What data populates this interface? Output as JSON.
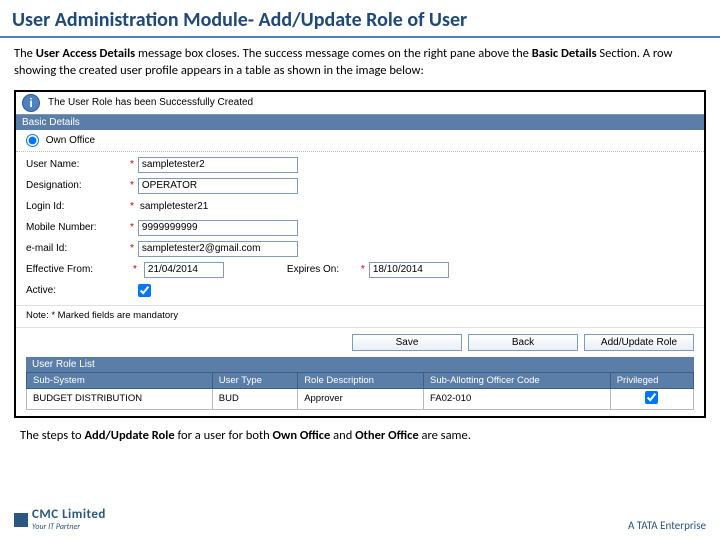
{
  "slide": {
    "title": "User Administration Module- Add/Update Role of User",
    "intro_prefix": "The ",
    "intro_bold1": "User Access Details",
    "intro_mid": " message box closes. The success message comes on the right pane above the ",
    "intro_bold2": "Basic Details",
    "intro_suffix": " Section. A row showing the created user profile appears in a table as shown in the image below:",
    "outro_prefix": "The steps to ",
    "outro_b1": "Add/Update Role",
    "outro_m1": " for a user for both ",
    "outro_b2": "Own Office",
    "outro_m2": " and ",
    "outro_b3": "Other Office",
    "outro_suffix": " are same."
  },
  "ui": {
    "success_msg": "The User Role has been Successfully Created",
    "section_basic": "Basic Details",
    "own_office": "Own Office",
    "labels": {
      "user_name": "User Name:",
      "designation": "Designation:",
      "login_id": "Login Id:",
      "mobile": "Mobile Number:",
      "email": "e-mail Id:",
      "eff_from": "Effective From:",
      "expires_on": "Expires On:",
      "active": "Active:",
      "note": "Note: * Marked fields are mandatory"
    },
    "values": {
      "user_name": "sampletester2",
      "designation": "OPERATOR",
      "login_id": "sampletester21",
      "mobile": "9999999999",
      "email": "sampletester2@gmail.com",
      "eff_from": "21/04/2014",
      "expires_on": "18/10/2014"
    },
    "buttons": {
      "save": "Save",
      "back": "Back",
      "add_update_role": "Add/Update Role"
    },
    "role_list_title": "User Role List",
    "role_table": {
      "headers": [
        "Sub-System",
        "User Type",
        "Role Description",
        "Sub-Allotting Officer Code",
        "Privileged"
      ],
      "row": [
        "BUDGET DISTRIBUTION",
        "BUD",
        "Approver",
        "FA02-010",
        "✓"
      ]
    },
    "req": "*"
  },
  "footer": {
    "cmc": "CMC Limited",
    "tag": "Your IT Partner",
    "tata": "A TATA Enterprise"
  },
  "colors": {
    "title": "#1f497d",
    "accent": "#4f81bd",
    "section_bg": "#5b7ea8"
  }
}
